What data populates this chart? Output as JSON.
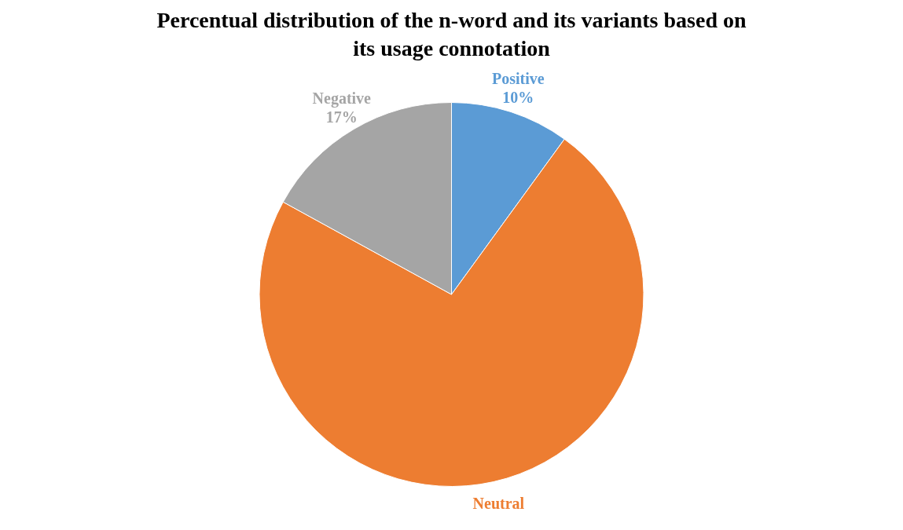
{
  "chart_data": {
    "type": "pie",
    "title": "Percentual distribution of the n-word and its variants based on its usage connotation",
    "categories": [
      "Positive",
      "Neutral",
      "Negative"
    ],
    "values": [
      10,
      73,
      17
    ],
    "value_labels": [
      "10%",
      null,
      "17%"
    ],
    "colors": [
      "#5b9bd5",
      "#ed7d31",
      "#a5a5a5"
    ]
  }
}
